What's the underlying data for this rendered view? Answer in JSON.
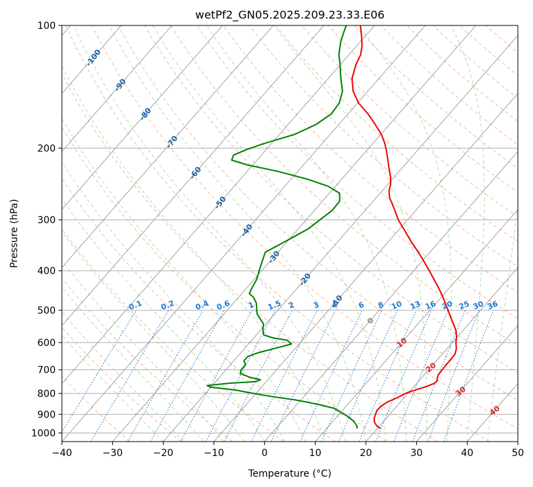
{
  "chart_data": {
    "type": "line",
    "subtype": "skew-t log-p diagram",
    "title": "wetPf2_GN05.2025.209.23.33.E06",
    "xlabel": "Temperature (°C)",
    "ylabel": "Pressure (hPa)",
    "xlim": [
      -40,
      50
    ],
    "ylim": [
      1050,
      100
    ],
    "y_scale": "log",
    "grid": true,
    "x_ticks": [
      -40,
      -30,
      -20,
      -10,
      0,
      10,
      20,
      30,
      40,
      50
    ],
    "x_tick_labels": [
      "−40",
      "−30",
      "−20",
      "−10",
      "0",
      "10",
      "20",
      "30",
      "40",
      "50"
    ],
    "y_ticks": [
      100,
      200,
      300,
      400,
      500,
      600,
      700,
      800,
      900,
      1000
    ],
    "y_tick_labels": [
      "100",
      "200",
      "300",
      "400",
      "500",
      "600",
      "700",
      "800",
      "900",
      "1000"
    ],
    "colors": {
      "temperature": "#ee0000",
      "dewpoint": "#008000",
      "isotherm": "#999999",
      "dry_adiabat": "#f4a582",
      "moist_adiabat": "#a6d7a0",
      "mixing_ratio": "#1f78d0",
      "isotherm_label": "#1f5fa0",
      "dry_adiabat_label": "#d62728",
      "zero_label": "#888888"
    },
    "isotherm_labels": [
      {
        "t": -100,
        "p": 120,
        "text": "-100"
      },
      {
        "t": -90,
        "p": 140,
        "text": "-90"
      },
      {
        "t": -80,
        "p": 165,
        "text": "-80"
      },
      {
        "t": -70,
        "p": 193,
        "text": "-70"
      },
      {
        "t": -60,
        "p": 230,
        "text": "-60"
      },
      {
        "t": -50,
        "p": 272,
        "text": "-50"
      },
      {
        "t": -40,
        "p": 318,
        "text": "-40"
      },
      {
        "t": -30,
        "p": 370,
        "text": "-30"
      },
      {
        "t": -20,
        "p": 420,
        "text": "-20"
      },
      {
        "t": -10,
        "p": 475,
        "text": "-10"
      }
    ],
    "zero_isotherm_label": {
      "t": 0,
      "p": 530,
      "text": "0"
    },
    "dry_adiabat_labels": [
      {
        "t": 10,
        "p": 600,
        "text": "10"
      },
      {
        "t": 20,
        "p": 690,
        "text": "20"
      },
      {
        "t": 30,
        "p": 790,
        "text": "30"
      },
      {
        "t": 40,
        "p": 880,
        "text": "40"
      }
    ],
    "mixing_ratio_labels": [
      {
        "w": 0.1,
        "text": "0.1"
      },
      {
        "w": 0.2,
        "text": "0.2"
      },
      {
        "w": 0.4,
        "text": "0.4"
      },
      {
        "w": 0.6,
        "text": "0.6"
      },
      {
        "w": 1,
        "text": "1"
      },
      {
        "w": 1.5,
        "text": "1.5"
      },
      {
        "w": 2,
        "text": "2"
      },
      {
        "w": 3,
        "text": "3"
      },
      {
        "w": 4,
        "text": "4"
      },
      {
        "w": 6,
        "text": "6"
      },
      {
        "w": 8,
        "text": "8"
      },
      {
        "w": 10,
        "text": "10"
      },
      {
        "w": 13,
        "text": "13"
      },
      {
        "w": 16,
        "text": "16"
      },
      {
        "w": 20,
        "text": "20"
      },
      {
        "w": 25,
        "text": "25"
      },
      {
        "w": 30,
        "text": "30"
      },
      {
        "w": 36,
        "text": "36"
      }
    ],
    "series": [
      {
        "key": "temperature",
        "points": [
          [
            975,
            20.6
          ],
          [
            960,
            19.4
          ],
          [
            940,
            18.3
          ],
          [
            920,
            17.6
          ],
          [
            900,
            17.2
          ],
          [
            880,
            16.8
          ],
          [
            860,
            16.9
          ],
          [
            840,
            17.4
          ],
          [
            820,
            18.6
          ],
          [
            800,
            19.5
          ],
          [
            790,
            20.3
          ],
          [
            780,
            21.3
          ],
          [
            770,
            22.4
          ],
          [
            755,
            23.5
          ],
          [
            745,
            23.6
          ],
          [
            735,
            23.2
          ],
          [
            720,
            22.8
          ],
          [
            700,
            22.7
          ],
          [
            680,
            22.6
          ],
          [
            660,
            22.6
          ],
          [
            640,
            22.5
          ],
          [
            620,
            21.8
          ],
          [
            600,
            20.7
          ],
          [
            580,
            19.8
          ],
          [
            560,
            18.6
          ],
          [
            540,
            17.0
          ],
          [
            520,
            15.3
          ],
          [
            500,
            13.6
          ],
          [
            480,
            11.8
          ],
          [
            460,
            9.9
          ],
          [
            440,
            7.8
          ],
          [
            420,
            5.5
          ],
          [
            400,
            3.1
          ],
          [
            380,
            0.5
          ],
          [
            360,
            -2.3
          ],
          [
            340,
            -5.4
          ],
          [
            320,
            -8.5
          ],
          [
            300,
            -11.8
          ],
          [
            280,
            -14.8
          ],
          [
            265,
            -17.3
          ],
          [
            255,
            -18.6
          ],
          [
            245,
            -19.5
          ],
          [
            235,
            -20.8
          ],
          [
            225,
            -22.4
          ],
          [
            215,
            -24.0
          ],
          [
            205,
            -25.7
          ],
          [
            195,
            -27.6
          ],
          [
            185,
            -29.9
          ],
          [
            175,
            -32.8
          ],
          [
            165,
            -36.0
          ],
          [
            155,
            -39.8
          ],
          [
            145,
            -42.9
          ],
          [
            135,
            -45.3
          ],
          [
            125,
            -46.9
          ],
          [
            118,
            -47.7
          ],
          [
            112,
            -49.0
          ],
          [
            106,
            -50.8
          ],
          [
            100,
            -52.8
          ]
        ]
      },
      {
        "key": "dewpoint",
        "points": [
          [
            975,
            16.0
          ],
          [
            960,
            15.5
          ],
          [
            935,
            14.0
          ],
          [
            910,
            12.0
          ],
          [
            890,
            10.0
          ],
          [
            870,
            8.0
          ],
          [
            850,
            4.0
          ],
          [
            830,
            -1.0
          ],
          [
            815,
            -6.0
          ],
          [
            800,
            -10.5
          ],
          [
            785,
            -14.5
          ],
          [
            772,
            -20.0
          ],
          [
            765,
            -21.0
          ],
          [
            755,
            -17.0
          ],
          [
            748,
            -12.0
          ],
          [
            740,
            -11.5
          ],
          [
            730,
            -14.0
          ],
          [
            715,
            -16.5
          ],
          [
            700,
            -17.0
          ],
          [
            680,
            -17.0
          ],
          [
            665,
            -18.0
          ],
          [
            650,
            -18.0
          ],
          [
            635,
            -16.5
          ],
          [
            620,
            -14.0
          ],
          [
            605,
            -11.5
          ],
          [
            592,
            -13.0
          ],
          [
            585,
            -16.0
          ],
          [
            575,
            -18.5
          ],
          [
            560,
            -19.5
          ],
          [
            540,
            -20.5
          ],
          [
            525,
            -22.0
          ],
          [
            510,
            -23.5
          ],
          [
            495,
            -24.5
          ],
          [
            480,
            -25.5
          ],
          [
            465,
            -27.0
          ],
          [
            455,
            -28.5
          ],
          [
            440,
            -29.0
          ],
          [
            420,
            -29.5
          ],
          [
            400,
            -30.5
          ],
          [
            380,
            -31.5
          ],
          [
            360,
            -32.5
          ],
          [
            345,
            -31.0
          ],
          [
            330,
            -29.5
          ],
          [
            315,
            -28.0
          ],
          [
            300,
            -27.3
          ],
          [
            285,
            -26.5
          ],
          [
            270,
            -26.6
          ],
          [
            258,
            -28.0
          ],
          [
            248,
            -31.5
          ],
          [
            238,
            -37.0
          ],
          [
            228,
            -44.0
          ],
          [
            220,
            -51.0
          ],
          [
            214,
            -55.0
          ],
          [
            208,
            -55.5
          ],
          [
            202,
            -54.0
          ],
          [
            195,
            -51.5
          ],
          [
            185,
            -47.0
          ],
          [
            175,
            -44.5
          ],
          [
            165,
            -43.3
          ],
          [
            155,
            -43.6
          ],
          [
            145,
            -45.0
          ],
          [
            135,
            -47.5
          ],
          [
            125,
            -50.0
          ],
          [
            118,
            -52.0
          ],
          [
            110,
            -53.8
          ],
          [
            104,
            -54.9
          ],
          [
            100,
            -55.6
          ]
        ]
      }
    ]
  }
}
